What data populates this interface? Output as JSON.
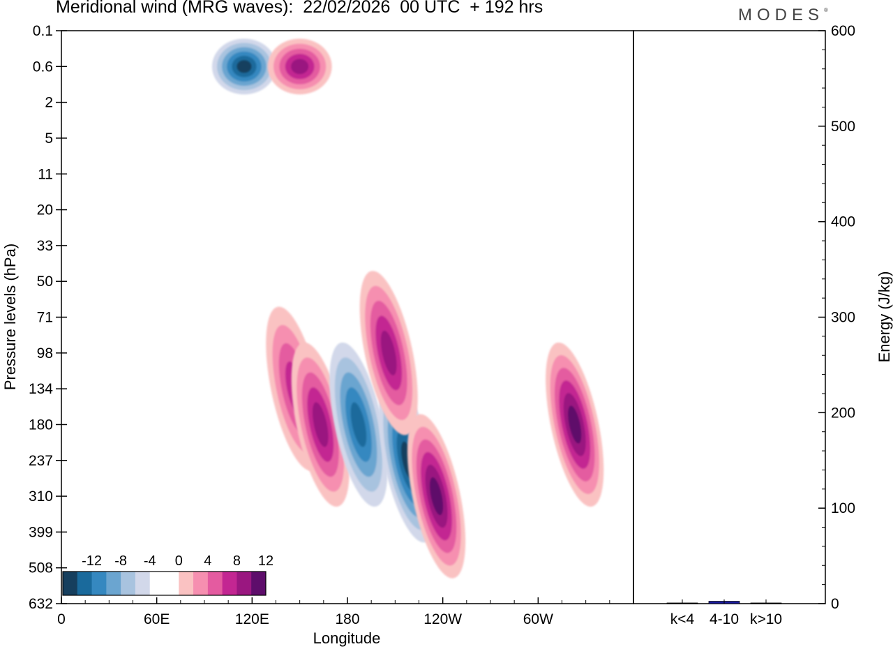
{
  "chart_data": [
    {
      "type": "heatmap",
      "title": "Meridional wind (MRG waves):  22/02/2026  00 UTC  + 192 hrs",
      "xlabel": "Longitude",
      "ylabel": "Pressure levels (hPa)",
      "x_ticks": [
        "0",
        "60E",
        "120E",
        "180",
        "120W",
        "60W"
      ],
      "x_range_deg": [
        0,
        360
      ],
      "x_tick_values_deg": [
        0,
        60,
        120,
        180,
        240,
        300
      ],
      "y_levels": [
        "0.1",
        "0.6",
        "2",
        "5",
        "11",
        "20",
        "33",
        "50",
        "71",
        "98",
        "134",
        "180",
        "237",
        "310",
        "399",
        "508",
        "632"
      ],
      "colorbar": {
        "labels": [
          "-12",
          "-8",
          "-4",
          "0",
          "4",
          "8",
          "12"
        ],
        "colors": [
          "#163f5e",
          "#1a6a9c",
          "#3588c0",
          "#6ba5d0",
          "#a8c3df",
          "#d2d8ea",
          "#ffffff",
          "#ffffff",
          "#fac2c2",
          "#f68fb0",
          "#e45ba0",
          "#c32692",
          "#9a1780",
          "#5e0d6b"
        ]
      },
      "features": [
        {
          "lon": 147,
          "level": "134",
          "value": 9,
          "note": "positive core"
        },
        {
          "lon": 163,
          "level": "180",
          "value": 10,
          "note": "positive core"
        },
        {
          "lon": 187,
          "level": "180",
          "value": -10,
          "note": "negative core"
        },
        {
          "lon": 218,
          "level": "237",
          "value": -14,
          "note": "negative core"
        },
        {
          "lon": 236,
          "level": "310",
          "value": 12,
          "note": "positive core"
        },
        {
          "lon": 206,
          "level": "98",
          "value": 10,
          "note": "positive core"
        },
        {
          "lon": 323,
          "level": "180",
          "value": 14,
          "note": "positive core"
        },
        {
          "lon": 115,
          "level": "0.6",
          "value": -12,
          "note": "negative core"
        },
        {
          "lon": 150,
          "level": "0.6",
          "value": 10,
          "note": "positive core"
        }
      ]
    },
    {
      "type": "bar",
      "ylabel": "Energy (J/kg)",
      "categories": [
        "k<4",
        "4-10",
        "k>10"
      ],
      "values": [
        0.5,
        2.5,
        0.5
      ],
      "ylim": [
        0,
        600
      ],
      "y_ticks": [
        "0",
        "100",
        "200",
        "300",
        "400",
        "500",
        "600"
      ]
    }
  ],
  "branding": {
    "text": "MODES",
    "mark": "®"
  },
  "colors": {
    "energy_bar": "#1a1aa0",
    "axis": "#000000"
  }
}
